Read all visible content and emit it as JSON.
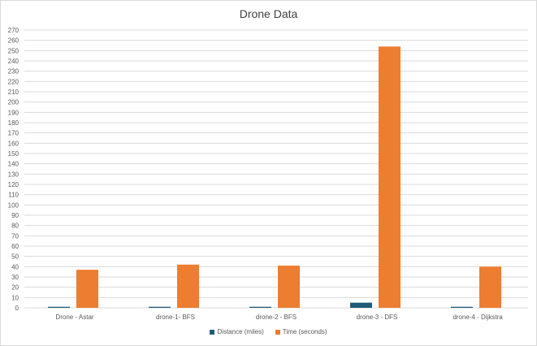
{
  "chart_data": {
    "type": "bar",
    "title": "Drone Data",
    "categories": [
      "Drone - Astar",
      "drone-1- BFS",
      "drone-2 - BFS",
      "drone-3 - DFS",
      "drone-4 - Dijkstra"
    ],
    "series": [
      {
        "name": "Distance (miles)",
        "color": "#1f5c7a",
        "values": [
          1,
          1,
          1,
          5,
          1
        ]
      },
      {
        "name": "Time (seconds)",
        "color": "#ed7d31",
        "values": [
          37,
          42,
          41,
          254,
          40
        ]
      }
    ],
    "ylim": [
      0,
      270
    ],
    "yticks": [
      0,
      10,
      20,
      30,
      40,
      50,
      60,
      70,
      80,
      90,
      100,
      110,
      120,
      130,
      140,
      150,
      160,
      170,
      180,
      190,
      200,
      210,
      220,
      230,
      240,
      250,
      260,
      270
    ],
    "grid": true,
    "legend": "bottom"
  }
}
